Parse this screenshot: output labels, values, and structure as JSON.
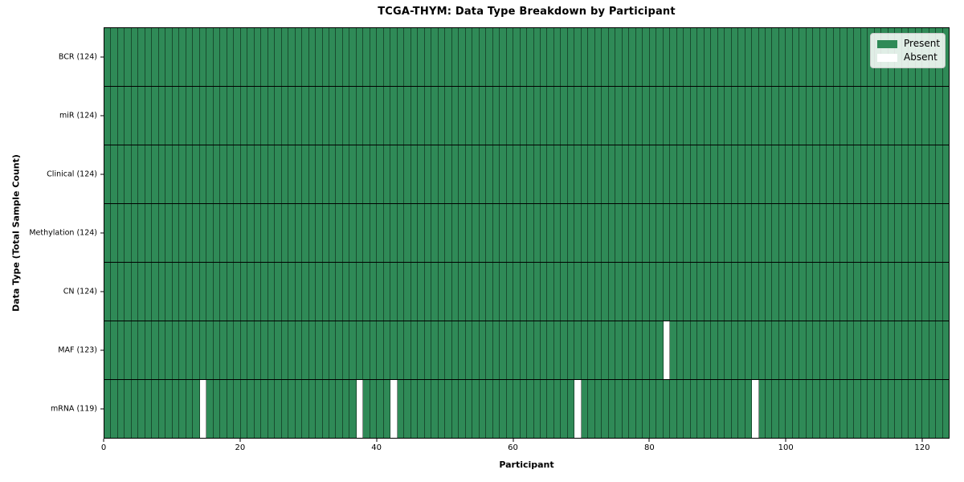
{
  "chart_data": {
    "type": "heatmap",
    "title": "TCGA-THYM: Data Type Breakdown by Participant",
    "xlabel": "Participant",
    "ylabel": "Data Type (Total Sample Count)",
    "x_ticks": [
      0,
      20,
      40,
      60,
      80,
      100,
      120
    ],
    "xlim": [
      0,
      124
    ],
    "n_participants": 124,
    "grid": "off",
    "rows": [
      {
        "label": "BCR (124)",
        "data_type": "BCR",
        "present_count": 124,
        "absent_participants": []
      },
      {
        "label": "miR (124)",
        "data_type": "miR",
        "present_count": 124,
        "absent_participants": []
      },
      {
        "label": "Clinical (124)",
        "data_type": "Clinical",
        "present_count": 124,
        "absent_participants": []
      },
      {
        "label": "Methylation (124)",
        "data_type": "Methylation",
        "present_count": 124,
        "absent_participants": []
      },
      {
        "label": "CN (124)",
        "data_type": "CN",
        "present_count": 124,
        "absent_participants": []
      },
      {
        "label": "MAF (123)",
        "data_type": "MAF",
        "present_count": 123,
        "absent_participants": [
          82
        ]
      },
      {
        "label": "mRNA (119)",
        "data_type": "mRNA",
        "present_count": 119,
        "absent_participants": [
          14,
          37,
          42,
          69,
          95
        ]
      }
    ],
    "legend": {
      "position": "upper right",
      "entries": [
        {
          "label": "Present",
          "color": "#2f8a57"
        },
        {
          "label": "Absent",
          "color": "#ffffff"
        }
      ]
    },
    "colors": {
      "present": "#2f8a57",
      "absent": "#ffffff",
      "cell_edge": "rgba(0,0,0,0.45)",
      "row_edge": "#000000",
      "frame": "#000000"
    }
  }
}
